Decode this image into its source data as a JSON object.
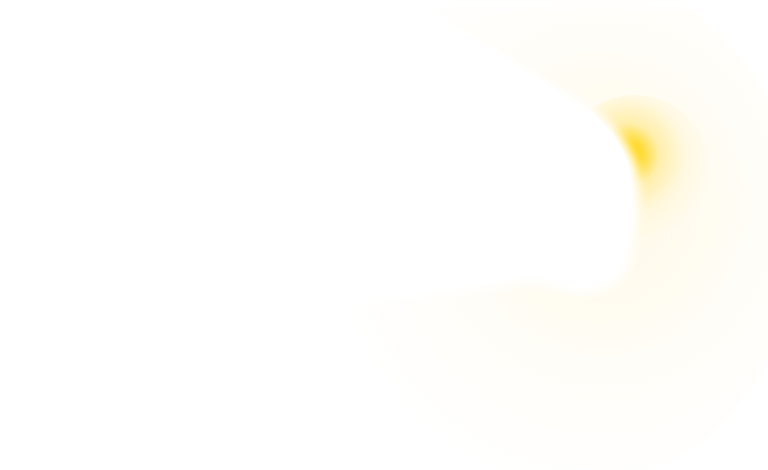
{
  "scene": {
    "background_color": "#ffffff",
    "glow_color": "#ffd200",
    "shape_color": "#ffffff"
  }
}
